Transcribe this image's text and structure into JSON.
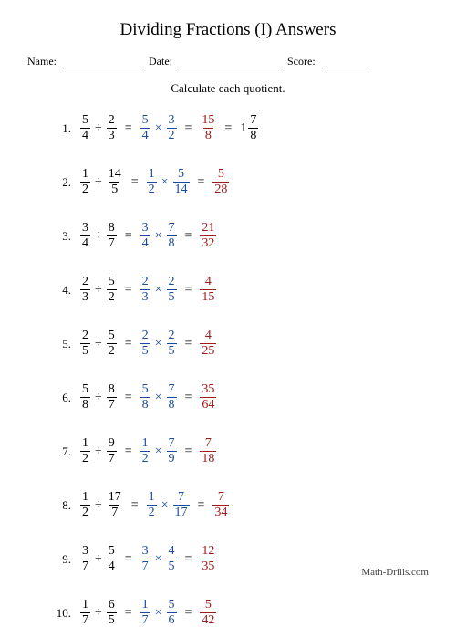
{
  "title": "Dividing Fractions (I) Answers",
  "meta": {
    "name": "Name:",
    "date": "Date:",
    "score": "Score:"
  },
  "instr": "Calculate each quotient.",
  "footer": "Math-Drills.com",
  "widths": {
    "nameLine": 85,
    "dateLine": 110,
    "scoreLine": 50
  },
  "colors": {
    "step": "#1a4aa0",
    "answer": "#a01a1a"
  },
  "ops": {
    "div": "÷",
    "mul": "×",
    "eq": "="
  },
  "problems": [
    {
      "a": [
        5,
        4
      ],
      "b": [
        2,
        3
      ],
      "inv": [
        3,
        2
      ],
      "prod": [
        15,
        8
      ],
      "mixed": [
        1,
        7,
        8
      ]
    },
    {
      "a": [
        1,
        2
      ],
      "b": [
        14,
        5
      ],
      "inv": [
        5,
        14
      ],
      "prod": [
        5,
        28
      ]
    },
    {
      "a": [
        3,
        4
      ],
      "b": [
        8,
        7
      ],
      "inv": [
        7,
        8
      ],
      "prod": [
        21,
        32
      ]
    },
    {
      "a": [
        2,
        3
      ],
      "b": [
        5,
        2
      ],
      "inv": [
        2,
        5
      ],
      "prod": [
        4,
        15
      ]
    },
    {
      "a": [
        2,
        5
      ],
      "b": [
        5,
        2
      ],
      "inv": [
        2,
        5
      ],
      "prod": [
        4,
        25
      ]
    },
    {
      "a": [
        5,
        8
      ],
      "b": [
        8,
        7
      ],
      "inv": [
        7,
        8
      ],
      "prod": [
        35,
        64
      ]
    },
    {
      "a": [
        1,
        2
      ],
      "b": [
        9,
        7
      ],
      "inv": [
        7,
        9
      ],
      "prod": [
        7,
        18
      ]
    },
    {
      "a": [
        1,
        2
      ],
      "b": [
        17,
        7
      ],
      "inv": [
        7,
        17
      ],
      "prod": [
        7,
        34
      ]
    },
    {
      "a": [
        3,
        7
      ],
      "b": [
        5,
        4
      ],
      "inv": [
        4,
        5
      ],
      "prod": [
        12,
        35
      ]
    },
    {
      "a": [
        1,
        7
      ],
      "b": [
        6,
        5
      ],
      "inv": [
        5,
        6
      ],
      "prod": [
        5,
        42
      ]
    }
  ]
}
